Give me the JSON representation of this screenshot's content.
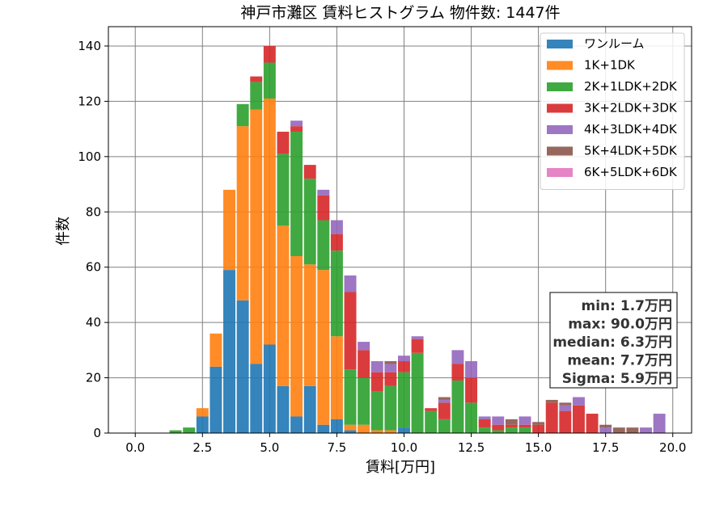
{
  "chart_data": {
    "type": "bar",
    "stacked": true,
    "title": "神戸市灘区 賃料ヒストグラム  物件数: 1447件",
    "xlabel": "賃料[万円]",
    "ylabel": "件数",
    "xlim": [
      -1,
      20.7
    ],
    "ylim": [
      0,
      147
    ],
    "xticks": [
      0.0,
      2.5,
      5.0,
      7.5,
      10.0,
      12.5,
      15.0,
      17.5,
      20.0
    ],
    "xtick_labels": [
      "0.0",
      "2.5",
      "5.0",
      "7.5",
      "10.0",
      "12.5",
      "15.0",
      "17.5",
      "20.0"
    ],
    "yticks": [
      0,
      20,
      40,
      60,
      80,
      100,
      120,
      140
    ],
    "ytick_labels": [
      "0",
      "20",
      "40",
      "60",
      "80",
      "100",
      "120",
      "140"
    ],
    "grid": true,
    "legend_position": "top-right",
    "bin_width": 0.5,
    "x": [
      1.5,
      2.0,
      2.5,
      3.0,
      3.5,
      4.0,
      4.5,
      5.0,
      5.5,
      6.0,
      6.5,
      7.0,
      7.5,
      8.0,
      8.5,
      9.0,
      9.5,
      10.0,
      10.5,
      11.0,
      11.5,
      12.0,
      12.5,
      13.0,
      13.5,
      14.0,
      14.5,
      15.0,
      15.5,
      16.0,
      16.5,
      17.0,
      17.5,
      18.0,
      18.5,
      19.0,
      19.5
    ],
    "series": [
      {
        "name": "ワンルーム",
        "color": "#1f77b4",
        "values": [
          0,
          0,
          6,
          24,
          59,
          48,
          25,
          32,
          17,
          6,
          17,
          3,
          5,
          1,
          0,
          0,
          0,
          2,
          0,
          0,
          0,
          0,
          0,
          0,
          0,
          0,
          0,
          0,
          0,
          0,
          0,
          0,
          0,
          0,
          0,
          0,
          0
        ]
      },
      {
        "name": "1K+1DK",
        "color": "#ff7f0e",
        "values": [
          0,
          0,
          3,
          12,
          29,
          63,
          92,
          89,
          58,
          58,
          44,
          56,
          30,
          2,
          3,
          1,
          1,
          0,
          0,
          0,
          0,
          0,
          0,
          0,
          0,
          0,
          0,
          0,
          0,
          0,
          0,
          0,
          0,
          0,
          0,
          0,
          0
        ]
      },
      {
        "name": "2K+1LDK+2DK",
        "color": "#2ca02c",
        "values": [
          1,
          2,
          0,
          0,
          0,
          8,
          10,
          13,
          26,
          45,
          31,
          18,
          31,
          20,
          17,
          14,
          16,
          20,
          29,
          8,
          5,
          19,
          11,
          2,
          1,
          2,
          2,
          0,
          0,
          0,
          0,
          0,
          0,
          0,
          0,
          0,
          0
        ]
      },
      {
        "name": "3K+2LDK+3DK",
        "color": "#d62728",
        "values": [
          0,
          0,
          0,
          0,
          0,
          0,
          2,
          6,
          8,
          2,
          5,
          9,
          6,
          28,
          10,
          7,
          5,
          4,
          5,
          1,
          6,
          6,
          9,
          3,
          2,
          1,
          1,
          3,
          11,
          8,
          10,
          7,
          0,
          0,
          0,
          0,
          0
        ]
      },
      {
        "name": "4K+3LDK+4DK",
        "color": "#9467bd",
        "values": [
          0,
          0,
          0,
          0,
          0,
          0,
          0,
          0,
          0,
          2,
          0,
          2,
          5,
          6,
          3,
          4,
          3,
          2,
          1,
          0,
          1,
          5,
          6,
          1,
          3,
          0,
          3,
          0,
          0,
          2,
          3,
          0,
          2,
          0,
          0,
          2,
          7
        ]
      },
      {
        "name": "5K+4LDK+5DK",
        "color": "#8c564b",
        "values": [
          0,
          0,
          0,
          0,
          0,
          0,
          0,
          0,
          0,
          0,
          0,
          0,
          0,
          0,
          0,
          0,
          1,
          0,
          0,
          0,
          1,
          0,
          0,
          0,
          0,
          2,
          0,
          1,
          1,
          1,
          0,
          0,
          1,
          2,
          2,
          0,
          0
        ]
      },
      {
        "name": "6K+5LDK+6DK",
        "color": "#e377c2",
        "values": [
          0,
          0,
          0,
          0,
          0,
          0,
          0,
          0,
          0,
          0,
          0,
          0,
          0,
          0,
          0,
          0,
          0,
          0,
          0,
          0,
          0,
          0,
          0,
          0,
          0,
          0,
          0,
          0,
          0,
          0,
          0,
          0,
          0,
          0,
          0,
          0,
          0
        ]
      }
    ],
    "stats_box": [
      "min: 1.7万円",
      "max: 90.0万円",
      "median: 6.3万円",
      "mean: 7.7万円",
      "Sigma: 5.9万円"
    ]
  }
}
